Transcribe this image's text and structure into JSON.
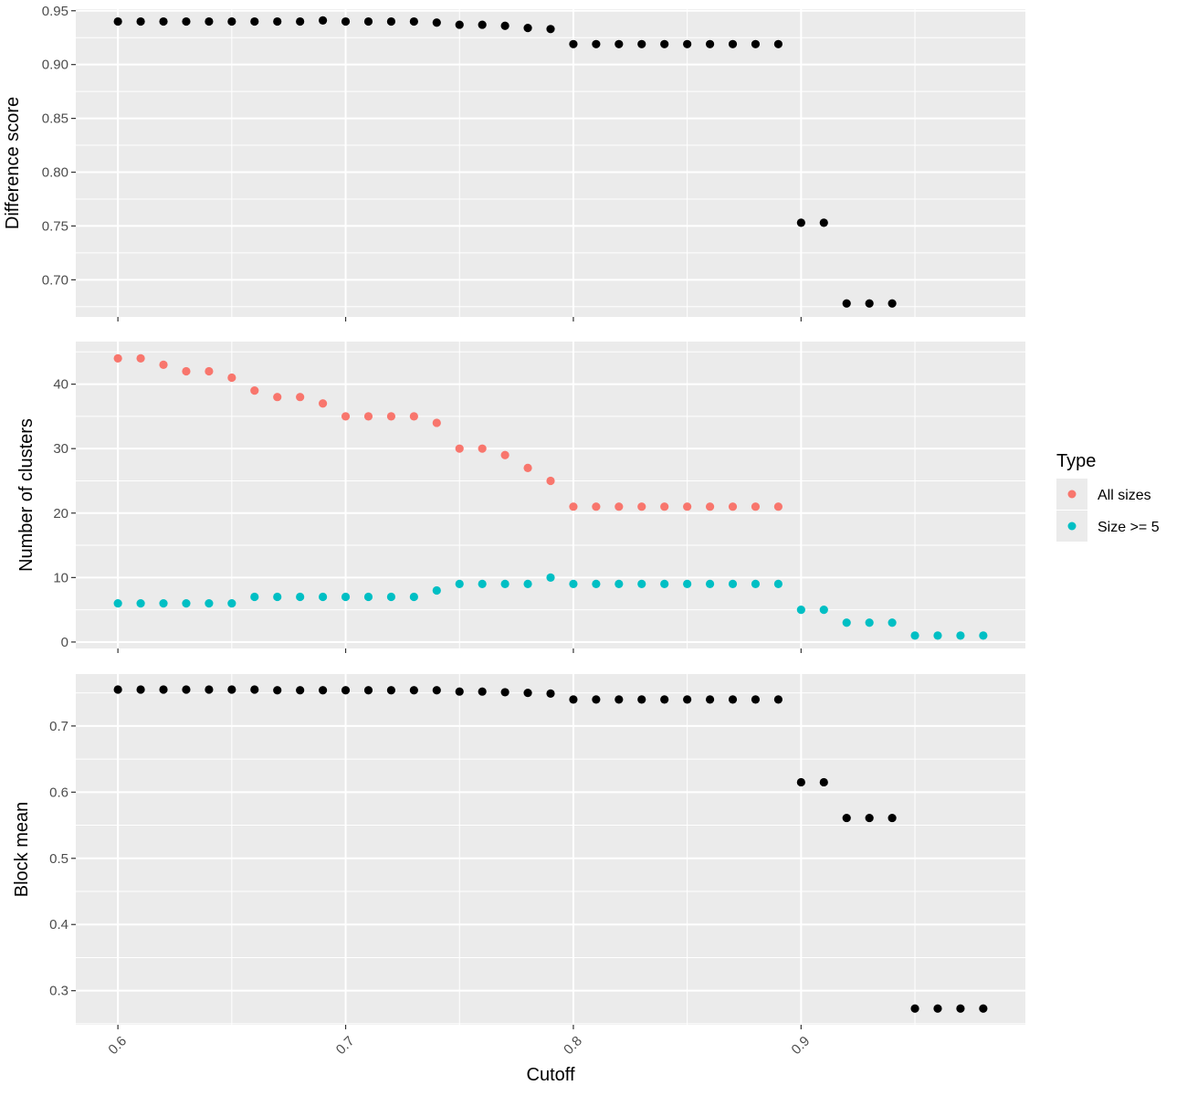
{
  "colors": {
    "panel_bg": "#EBEBEB",
    "grid": "#FFFFFF",
    "point_black": "#000000",
    "all_sizes": "#F8766D",
    "size_ge5": "#00BFC4",
    "tick_text": "#4D4D4D",
    "axis_title": "#000000"
  },
  "chart_data": {
    "type": "scatter",
    "x_axis": {
      "label": "Cutoff",
      "ticks": [
        0.6,
        0.7,
        0.8,
        0.9
      ],
      "tick_labels": [
        "0.6",
        "0.7",
        "0.8",
        "0.9"
      ],
      "range": [
        0.5815,
        0.9985
      ],
      "tick_label_rotation": "45"
    },
    "x": [
      0.6,
      0.61,
      0.62,
      0.63,
      0.64,
      0.65,
      0.66,
      0.67,
      0.68,
      0.69,
      0.7,
      0.71,
      0.72,
      0.73,
      0.74,
      0.75,
      0.76,
      0.77,
      0.78,
      0.79,
      0.8,
      0.81,
      0.82,
      0.83,
      0.84,
      0.85,
      0.86,
      0.87,
      0.88,
      0.89,
      0.9,
      0.91,
      0.92,
      0.93,
      0.94,
      0.95,
      0.96,
      0.97,
      0.98
    ],
    "panels": [
      {
        "ylabel": "Difference score",
        "yticks": [
          0.7,
          0.75,
          0.8,
          0.85,
          0.9,
          0.95
        ],
        "ytick_labels": [
          "0.70",
          "0.75",
          "0.80",
          "0.85",
          "0.90",
          "0.95"
        ],
        "ylim": [
          0.6655,
          0.9515
        ],
        "series": [
          {
            "color_key": "point_black",
            "values": [
              0.94,
              0.94,
              0.94,
              0.94,
              0.94,
              0.94,
              0.94,
              0.94,
              0.94,
              0.941,
              0.94,
              0.94,
              0.94,
              0.94,
              0.939,
              0.937,
              0.937,
              0.936,
              0.934,
              0.933,
              0.919,
              0.919,
              0.919,
              0.919,
              0.919,
              0.919,
              0.919,
              0.919,
              0.919,
              0.919,
              0.753,
              0.753,
              0.678,
              0.678,
              0.678,
              null,
              null,
              null,
              null
            ]
          }
        ]
      },
      {
        "ylabel": "Number of clusters",
        "yticks": [
          0,
          10,
          20,
          30,
          40
        ],
        "ytick_labels": [
          "0",
          "10",
          "20",
          "30",
          "40"
        ],
        "ylim": [
          -1.0,
          46.6
        ],
        "series": [
          {
            "name": "All sizes",
            "color_key": "all_sizes",
            "values": [
              44,
              44,
              43,
              42,
              42,
              41,
              39,
              38,
              38,
              37,
              35,
              35,
              35,
              35,
              34,
              30,
              30,
              29,
              27,
              25,
              21,
              21,
              21,
              21,
              21,
              21,
              21,
              21,
              21,
              21,
              null,
              null,
              null,
              null,
              null,
              null,
              null,
              null,
              null
            ]
          },
          {
            "name": "Size >= 5",
            "color_key": "size_ge5",
            "values": [
              6,
              6,
              6,
              6,
              6,
              6,
              7,
              7,
              7,
              7,
              7,
              7,
              7,
              7,
              8,
              9,
              9,
              9,
              9,
              10,
              9,
              9,
              9,
              9,
              9,
              9,
              9,
              9,
              9,
              9,
              5,
              5,
              3,
              3,
              3,
              1,
              1,
              1,
              1
            ]
          }
        ]
      },
      {
        "ylabel": "Block mean",
        "yticks": [
          0.3,
          0.4,
          0.5,
          0.6,
          0.7
        ],
        "ytick_labels": [
          "0.3",
          "0.4",
          "0.5",
          "0.6",
          "0.7"
        ],
        "ylim": [
          0.2485,
          0.7785
        ],
        "series": [
          {
            "color_key": "point_black",
            "values": [
              0.755,
              0.755,
              0.755,
              0.755,
              0.755,
              0.755,
              0.755,
              0.754,
              0.754,
              0.754,
              0.754,
              0.754,
              0.754,
              0.754,
              0.754,
              0.752,
              0.752,
              0.751,
              0.75,
              0.749,
              0.74,
              0.74,
              0.74,
              0.74,
              0.74,
              0.74,
              0.74,
              0.74,
              0.74,
              0.74,
              0.615,
              0.615,
              0.561,
              0.561,
              0.561,
              0.273,
              0.273,
              0.273,
              0.273
            ]
          }
        ]
      }
    ],
    "legend": {
      "title": "Type",
      "placement": "right",
      "entries": [
        {
          "label": "All sizes",
          "color_key": "all_sizes"
        },
        {
          "label": "Size >= 5",
          "color_key": "size_ge5"
        }
      ]
    },
    "grid": true
  }
}
